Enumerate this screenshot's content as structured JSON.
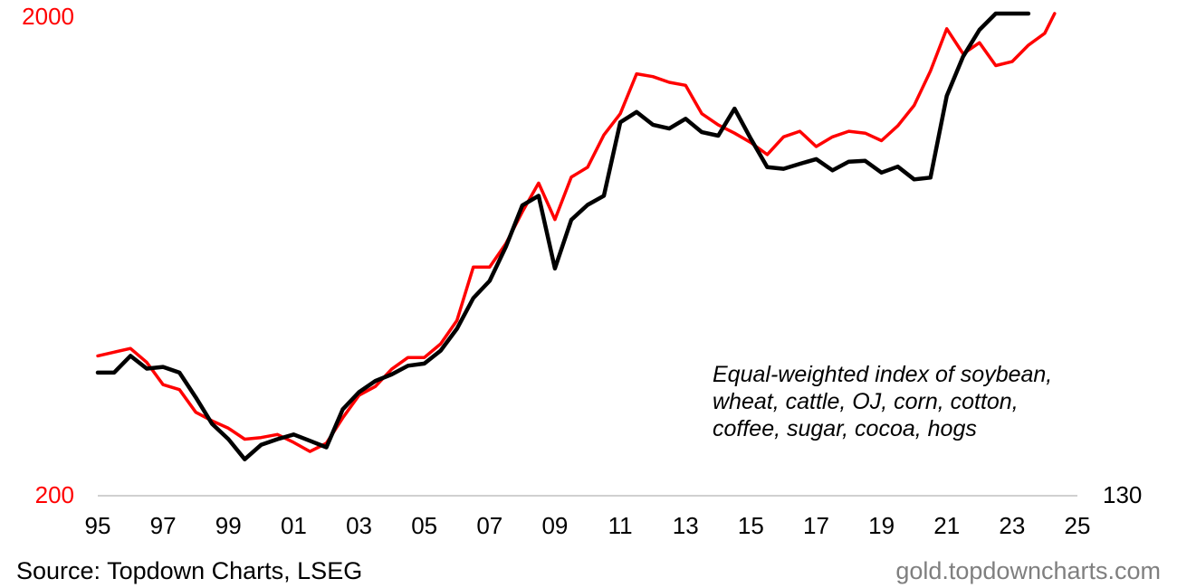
{
  "chart_data": {
    "type": "line",
    "x_label": "",
    "y_label": "",
    "x_ticks": [
      "95",
      "97",
      "99",
      "01",
      "03",
      "05",
      "07",
      "09",
      "11",
      "13",
      "15",
      "17",
      "19",
      "21",
      "23",
      "25"
    ],
    "x_range": [
      1995,
      2025
    ],
    "y_left": {
      "labels": [
        "2000",
        "200"
      ],
      "range": [
        200,
        2000
      ],
      "scale": "log",
      "color": "#ff0000"
    },
    "y_right": {
      "labels": [
        "130"
      ],
      "color": "#000000"
    },
    "annotation": [
      "Equal-weighted index of soybean,",
      "wheat, cattle, OJ, corn, cotton,",
      "coffee, sugar, cocoa, hogs"
    ],
    "grid": false,
    "series": [
      {
        "axis": "left",
        "color": "#ff0000",
        "points": [
          [
            1995.0,
            390
          ],
          [
            1995.5,
            397
          ],
          [
            1996.0,
            404
          ],
          [
            1996.5,
            378
          ],
          [
            1997.0,
            340
          ],
          [
            1997.5,
            332
          ],
          [
            1998.0,
            298
          ],
          [
            1998.5,
            286
          ],
          [
            1999.0,
            276
          ],
          [
            1999.5,
            262
          ],
          [
            2000.0,
            264
          ],
          [
            2000.5,
            268
          ],
          [
            2001.0,
            258
          ],
          [
            2001.5,
            247
          ],
          [
            2002.0,
            257
          ],
          [
            2002.5,
            290
          ],
          [
            2003.0,
            323
          ],
          [
            2003.5,
            337
          ],
          [
            2004.0,
            366
          ],
          [
            2004.5,
            387
          ],
          [
            2005.0,
            387
          ],
          [
            2005.5,
            413
          ],
          [
            2006.0,
            462
          ],
          [
            2006.5,
            596
          ],
          [
            2007.0,
            596
          ],
          [
            2007.5,
            667
          ],
          [
            2008.0,
            776
          ],
          [
            2008.5,
            890
          ],
          [
            2009.0,
            748
          ],
          [
            2009.5,
            916
          ],
          [
            2010.0,
            960
          ],
          [
            2010.5,
            1120
          ],
          [
            2011.0,
            1240
          ],
          [
            2011.5,
            1500
          ],
          [
            2012.0,
            1480
          ],
          [
            2012.5,
            1440
          ],
          [
            2013.0,
            1420
          ],
          [
            2013.5,
            1240
          ],
          [
            2014.0,
            1175
          ],
          [
            2014.5,
            1130
          ],
          [
            2015.0,
            1080
          ],
          [
            2015.5,
            1020
          ],
          [
            2016.0,
            1110
          ],
          [
            2016.5,
            1140
          ],
          [
            2017.0,
            1060
          ],
          [
            2017.5,
            1110
          ],
          [
            2018.0,
            1140
          ],
          [
            2018.5,
            1130
          ],
          [
            2019.0,
            1090
          ],
          [
            2019.5,
            1170
          ],
          [
            2020.0,
            1290
          ],
          [
            2020.5,
            1520
          ],
          [
            2021.0,
            1860
          ],
          [
            2021.5,
            1650
          ],
          [
            2022.0,
            1740
          ],
          [
            2022.5,
            1560
          ],
          [
            2023.0,
            1590
          ],
          [
            2023.5,
            1720
          ],
          [
            2024.0,
            1820
          ],
          [
            2024.3,
            2000
          ]
        ]
      },
      {
        "axis": "right",
        "color": "#000000",
        "points": [
          [
            1995.0,
            360
          ],
          [
            1995.5,
            360
          ],
          [
            1996.0,
            390
          ],
          [
            1996.5,
            367
          ],
          [
            1997.0,
            370
          ],
          [
            1997.5,
            360
          ],
          [
            1998.0,
            320
          ],
          [
            1998.5,
            282
          ],
          [
            1999.0,
            262
          ],
          [
            1999.5,
            238
          ],
          [
            2000.0,
            255
          ],
          [
            2000.5,
            262
          ],
          [
            2001.0,
            268
          ],
          [
            2001.5,
            260
          ],
          [
            2002.0,
            252
          ],
          [
            2002.5,
            302
          ],
          [
            2003.0,
            328
          ],
          [
            2003.5,
            346
          ],
          [
            2004.0,
            357
          ],
          [
            2004.5,
            372
          ],
          [
            2005.0,
            376
          ],
          [
            2005.5,
            400
          ],
          [
            2006.0,
            444
          ],
          [
            2006.5,
            514
          ],
          [
            2007.0,
            558
          ],
          [
            2007.5,
            657
          ],
          [
            2008.0,
            800
          ],
          [
            2008.5,
            838
          ],
          [
            2009.0,
            592
          ],
          [
            2009.5,
            747
          ],
          [
            2010.0,
            802
          ],
          [
            2010.5,
            838
          ],
          [
            2011.0,
            1190
          ],
          [
            2011.5,
            1250
          ],
          [
            2012.0,
            1176
          ],
          [
            2012.5,
            1155
          ],
          [
            2013.0,
            1210
          ],
          [
            2013.5,
            1135
          ],
          [
            2014.0,
            1116
          ],
          [
            2014.5,
            1270
          ],
          [
            2015.0,
            1100
          ],
          [
            2015.5,
            961
          ],
          [
            2016.0,
            953
          ],
          [
            2016.5,
            976
          ],
          [
            2017.0,
            998
          ],
          [
            2017.5,
            946
          ],
          [
            2018.0,
            986
          ],
          [
            2018.5,
            990
          ],
          [
            2019.0,
            936
          ],
          [
            2019.5,
            963
          ],
          [
            2020.0,
            906
          ],
          [
            2020.5,
            914
          ],
          [
            2021.0,
            1350
          ],
          [
            2021.5,
            1630
          ],
          [
            2022.0,
            1850
          ],
          [
            2022.5,
            2000
          ],
          [
            2023.0,
            2000
          ],
          [
            2023.5,
            2000
          ]
        ]
      }
    ]
  },
  "footer": {
    "source": "Source: Topdown Charts, LSEG",
    "site": "gold.topdowncharts.com"
  }
}
